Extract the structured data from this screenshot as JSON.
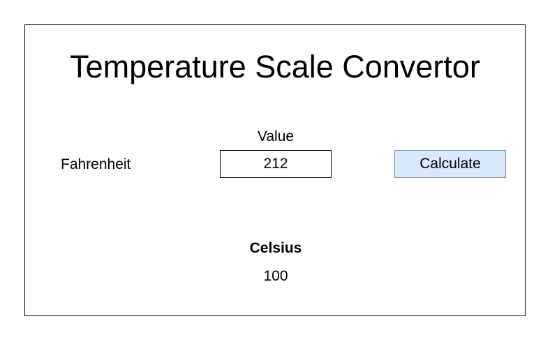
{
  "app": {
    "title": "Temperature Scale Convertor"
  },
  "form": {
    "value_label": "Value",
    "input_scale": "Fahrenheit",
    "input_value": "212",
    "calculate_label": "Calculate"
  },
  "result": {
    "scale": "Celsius",
    "value": "100"
  },
  "colors": {
    "button_fill": "#dae8fc",
    "button_border": "#6c8ebf",
    "frame_border": "#000000"
  }
}
